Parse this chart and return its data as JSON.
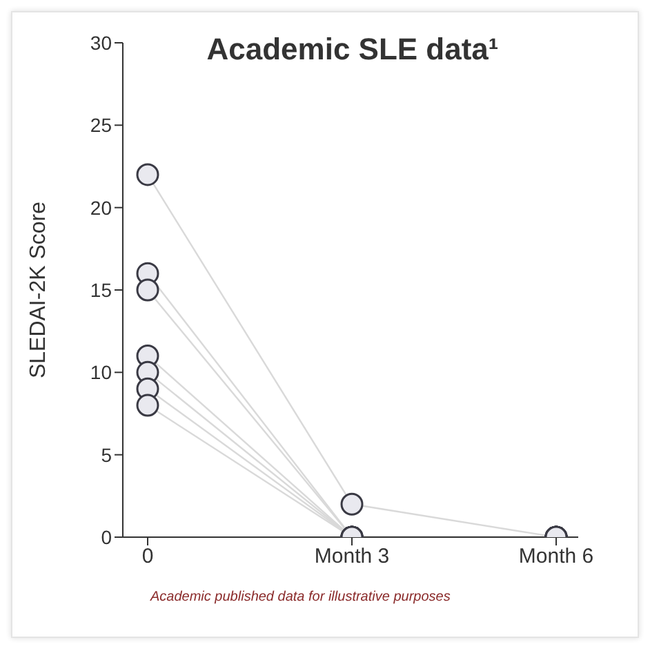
{
  "chart_data": {
    "type": "line",
    "title": "Academic SLE data¹",
    "ylabel": "SLEDAI-2K Score",
    "categories": [
      "0",
      "Month 3",
      "Month 6"
    ],
    "series": [
      {
        "color": "#d9d9d9",
        "values": [
          22,
          2,
          0
        ]
      },
      {
        "color": "#d9d9d9",
        "values": [
          16,
          0,
          0
        ]
      },
      {
        "color": "#d9d9d9",
        "values": [
          15,
          0,
          0
        ]
      },
      {
        "color": "#d9d9d9",
        "values": [
          11,
          0,
          0
        ]
      },
      {
        "color": "#d9d9d9",
        "values": [
          10,
          0,
          0
        ]
      },
      {
        "color": "#d9d9d9",
        "values": [
          9,
          0,
          0
        ]
      },
      {
        "color": "#d9d9d9",
        "values": [
          8,
          0,
          0
        ]
      }
    ],
    "ylim": [
      0,
      30
    ],
    "yticks": [
      0,
      5,
      10,
      15,
      20,
      25,
      30
    ],
    "grid": false,
    "legend": false,
    "marker": "circle",
    "line_style": "solid",
    "annotations": [
      "Academic published data for illustrative purposes"
    ]
  }
}
